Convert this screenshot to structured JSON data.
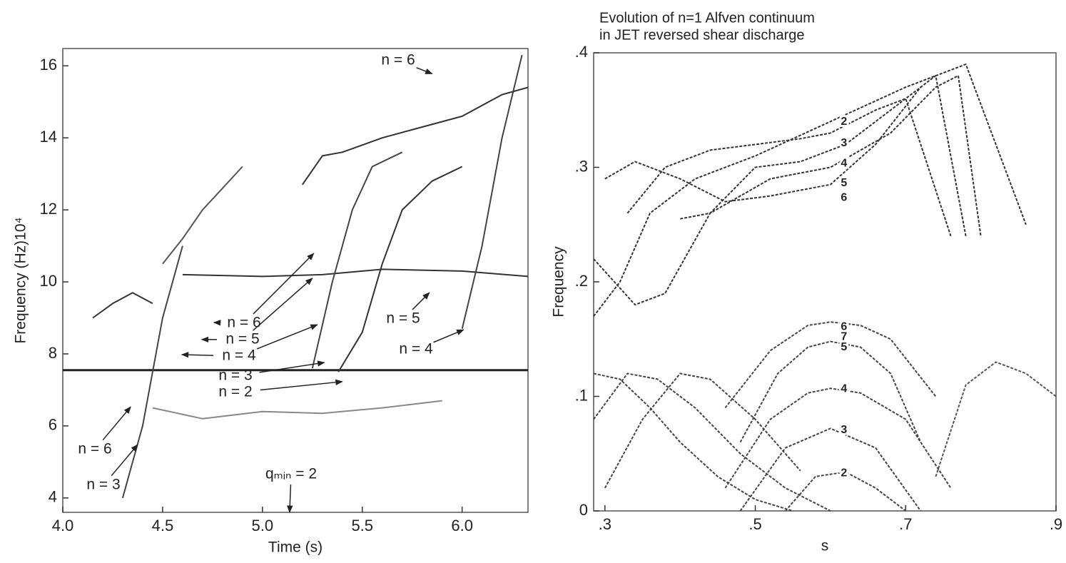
{
  "chart_data": [
    {
      "type": "line",
      "xlabel": "Time (s)",
      "ylabel": "Frequency (Hz)10⁴",
      "xlim": [
        4.0,
        6.33
      ],
      "ylim": [
        3.6,
        16.48
      ],
      "xticks": [
        {
          "value": 4.0,
          "label": "4.0"
        },
        {
          "value": 4.5,
          "label": "4.5"
        },
        {
          "value": 5.0,
          "label": "5.0"
        },
        {
          "value": 5.5,
          "label": "5.5"
        },
        {
          "value": 6.0,
          "label": "6.0"
        }
      ],
      "yticks": [
        4,
        6,
        8,
        10,
        12,
        14,
        16
      ],
      "series": [
        {
          "color": "#222",
          "x": [
            4.0,
            6.33
          ],
          "values": [
            7.55,
            7.55
          ]
        },
        {
          "color": "#333",
          "x": [
            4.6,
            5.0,
            5.3,
            5.6,
            6.0,
            6.33
          ],
          "values": [
            10.2,
            10.15,
            10.2,
            10.35,
            10.3,
            10.15
          ]
        },
        {
          "color": "#888",
          "x": [
            4.45,
            4.7,
            5.0,
            5.3,
            5.6,
            5.9
          ],
          "values": [
            6.5,
            6.2,
            6.4,
            6.35,
            6.5,
            6.7
          ]
        },
        {
          "color": "#444",
          "x": [
            4.3,
            4.4,
            4.5,
            4.6
          ],
          "values": [
            4.0,
            6.0,
            9.0,
            11.0
          ]
        },
        {
          "color": "#444",
          "x": [
            5.25,
            5.35,
            5.45,
            5.55,
            5.7
          ],
          "values": [
            7.6,
            10.0,
            12.0,
            13.2,
            13.6
          ]
        },
        {
          "color": "#333",
          "x": [
            5.38,
            5.5,
            5.6,
            5.7,
            5.85,
            6.0
          ],
          "values": [
            7.5,
            8.6,
            10.5,
            12.0,
            12.8,
            13.2
          ]
        },
        {
          "color": "#444",
          "x": [
            6.0,
            6.1,
            6.2,
            6.3
          ],
          "values": [
            8.7,
            11.0,
            14.0,
            16.3
          ]
        },
        {
          "color": "#333",
          "x": [
            5.2,
            5.3,
            5.4,
            5.6,
            5.8,
            6.0,
            6.2,
            6.33
          ],
          "values": [
            12.7,
            13.5,
            13.6,
            14.0,
            14.3,
            14.6,
            15.2,
            15.4
          ]
        },
        {
          "color": "#333",
          "x": [
            4.15,
            4.25,
            4.35,
            4.45
          ],
          "values": [
            9.0,
            9.4,
            9.7,
            9.4
          ]
        },
        {
          "color": "#555",
          "x": [
            4.5,
            4.6,
            4.7,
            4.8,
            4.9
          ],
          "values": [
            10.5,
            11.2,
            12.0,
            12.6,
            13.2
          ]
        }
      ],
      "annotations": [
        {
          "text": "n = 6",
          "x": [
            5.85
          ],
          "y": [
            15.78
          ]
        },
        {
          "text": "n = 6",
          "x": [
            4.34
          ],
          "y": [
            6.53
          ]
        },
        {
          "text": "n = 3",
          "x": [
            4.375
          ],
          "y": [
            5.48
          ]
        },
        {
          "text": "n = 6",
          "x": [
            4.757,
            5.257
          ],
          "y": [
            8.87,
            10.79
          ]
        },
        {
          "text": "n = 5",
          "x": [
            4.696,
            5.25
          ],
          "y": [
            8.4,
            10.1
          ]
        },
        {
          "text": "n = 4",
          "x": [
            4.596,
            5.275
          ],
          "y": [
            7.98,
            8.81
          ]
        },
        {
          "text": "n = 3",
          "x": [
            5.31
          ],
          "y": [
            7.76
          ]
        },
        {
          "text": "n = 2",
          "x": [
            5.4
          ],
          "y": [
            7.23
          ]
        },
        {
          "text": "n = 5",
          "x": [
            5.836
          ],
          "y": [
            9.7
          ]
        },
        {
          "text": "n = 4",
          "x": [
            6.007
          ],
          "y": [
            8.67
          ]
        },
        {
          "text": "qₘᵢₙ = 2",
          "x": [
            5.136
          ],
          "y": [
            3.6
          ]
        }
      ]
    },
    {
      "type": "line",
      "title": [
        "Evolution of n=1 Alfven continuum",
        "in JET reversed shear discharge"
      ],
      "xlabel": "s",
      "ylabel": "Frequency",
      "xlim": [
        0.285,
        0.9
      ],
      "ylim": [
        0,
        0.4
      ],
      "xticks": [
        {
          "value": 0.3,
          "label": ".3"
        },
        {
          "value": 0.5,
          "label": ".5"
        },
        {
          "value": 0.7,
          "label": ".7"
        },
        {
          "value": 0.9,
          "label": ".9"
        }
      ],
      "yticks": [
        0,
        {
          "value": 0.1,
          "label": ".1"
        },
        {
          "value": 0.2,
          "label": ".2"
        },
        {
          "value": 0.3,
          "label": ".3"
        },
        {
          "value": 0.4,
          "label": ".4"
        }
      ],
      "series": [
        {
          "color": "#333",
          "x": [
            0.285,
            0.32,
            0.36,
            0.42,
            0.5,
            0.6,
            0.7,
            0.78,
            0.82,
            0.86
          ],
          "values": [
            0.17,
            0.2,
            0.26,
            0.29,
            0.31,
            0.34,
            0.37,
            0.39,
            0.32,
            0.25
          ]
        },
        {
          "color": "#333",
          "x": [
            0.285,
            0.34,
            0.38,
            0.44,
            0.52,
            0.6,
            0.68,
            0.74,
            0.77,
            0.8
          ],
          "values": [
            0.22,
            0.18,
            0.19,
            0.26,
            0.29,
            0.3,
            0.33,
            0.37,
            0.38,
            0.24
          ]
        },
        {
          "color": "#333",
          "x": [
            0.3,
            0.34,
            0.4,
            0.46,
            0.52,
            0.6,
            0.66,
            0.72
          ],
          "values": [
            0.29,
            0.305,
            0.29,
            0.27,
            0.275,
            0.285,
            0.32,
            0.37
          ]
        },
        {
          "color": "#333",
          "x": [
            0.33,
            0.38,
            0.44,
            0.5,
            0.56,
            0.6,
            0.66,
            0.7,
            0.76
          ],
          "values": [
            0.26,
            0.3,
            0.315,
            0.32,
            0.325,
            0.33,
            0.35,
            0.36,
            0.24
          ]
        },
        {
          "color": "#333",
          "x": [
            0.4,
            0.44,
            0.5,
            0.56,
            0.62,
            0.68,
            0.74,
            0.78
          ],
          "values": [
            0.255,
            0.26,
            0.3,
            0.305,
            0.32,
            0.35,
            0.38,
            0.24
          ]
        },
        {
          "color": "#444",
          "x": [
            0.285,
            0.32,
            0.36,
            0.4,
            0.45,
            0.5,
            0.55
          ],
          "values": [
            0.12,
            0.115,
            0.09,
            0.06,
            0.03,
            0.01,
            0.0
          ]
        },
        {
          "color": "#444",
          "x": [
            0.285,
            0.33,
            0.37,
            0.42,
            0.48,
            0.54,
            0.6
          ],
          "values": [
            0.08,
            0.12,
            0.115,
            0.09,
            0.05,
            0.02,
            0.0
          ]
        },
        {
          "color": "#444",
          "x": [
            0.3,
            0.35,
            0.4,
            0.44,
            0.5,
            0.56
          ],
          "values": [
            0.02,
            0.08,
            0.12,
            0.115,
            0.08,
            0.035
          ]
        },
        {
          "color": "#444",
          "x": [
            0.46,
            0.52,
            0.57,
            0.6,
            0.64,
            0.68,
            0.74
          ],
          "values": [
            0.09,
            0.14,
            0.162,
            0.165,
            0.162,
            0.15,
            0.1
          ]
        },
        {
          "color": "#444",
          "x": [
            0.48,
            0.53,
            0.57,
            0.6,
            0.64,
            0.68,
            0.72
          ],
          "values": [
            0.06,
            0.12,
            0.143,
            0.148,
            0.143,
            0.12,
            0.06
          ]
        },
        {
          "color": "#444",
          "x": [
            0.46,
            0.52,
            0.57,
            0.6,
            0.64,
            0.7,
            0.76
          ],
          "values": [
            0.02,
            0.08,
            0.103,
            0.107,
            0.103,
            0.08,
            0.02
          ]
        },
        {
          "color": "#444",
          "x": [
            0.48,
            0.54,
            0.6,
            0.66,
            0.72
          ],
          "values": [
            0.0,
            0.055,
            0.072,
            0.055,
            0.0
          ]
        },
        {
          "color": "#444",
          "x": [
            0.54,
            0.58,
            0.62,
            0.66,
            0.7
          ],
          "values": [
            0.0,
            0.03,
            0.034,
            0.02,
            0.0
          ]
        },
        {
          "color": "#555",
          "x": [
            0.74,
            0.78,
            0.82,
            0.86,
            0.9
          ],
          "values": [
            0.03,
            0.11,
            0.13,
            0.12,
            0.1
          ]
        }
      ],
      "annotations": [
        {
          "text": "2",
          "x": [
            0.618
          ],
          "y": [
            0.3396
          ]
        },
        {
          "text": "3",
          "x": [
            0.618
          ],
          "y": [
            0.321
          ]
        },
        {
          "text": "4",
          "x": [
            0.618
          ],
          "y": [
            0.3034
          ]
        },
        {
          "text": "5",
          "x": [
            0.618
          ],
          "y": [
            0.286
          ]
        },
        {
          "text": "6",
          "x": [
            0.618
          ],
          "y": [
            0.2735
          ]
        },
        {
          "text": "6",
          "x": [
            0.618
          ],
          "y": [
            0.1607
          ]
        },
        {
          "text": "7",
          "x": [
            0.618
          ],
          "y": [
            0.152
          ]
        },
        {
          "text": "5",
          "x": [
            0.618
          ],
          "y": [
            0.1427
          ]
        },
        {
          "text": "4",
          "x": [
            0.618
          ],
          "y": [
            0.1065
          ]
        },
        {
          "text": "3",
          "x": [
            0.618
          ],
          "y": [
            0.0704
          ]
        },
        {
          "text": "2",
          "x": [
            0.618
          ],
          "y": [
            0.033
          ]
        }
      ]
    }
  ]
}
